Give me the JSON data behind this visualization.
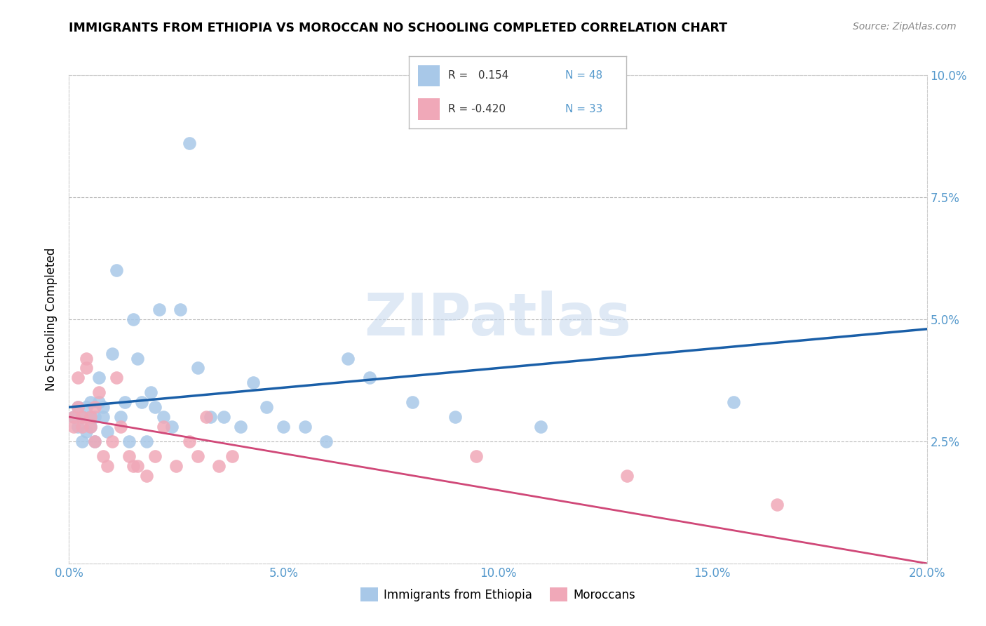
{
  "title": "IMMIGRANTS FROM ETHIOPIA VS MOROCCAN NO SCHOOLING COMPLETED CORRELATION CHART",
  "source": "Source: ZipAtlas.com",
  "ylabel": "No Schooling Completed",
  "xlim": [
    0.0,
    0.2
  ],
  "ylim": [
    0.0,
    0.1
  ],
  "x_tick_vals": [
    0.0,
    0.05,
    0.1,
    0.15,
    0.2
  ],
  "x_tick_labels": [
    "0.0%",
    "5.0%",
    "10.0%",
    "15.0%",
    "20.0%"
  ],
  "y_tick_vals": [
    0.025,
    0.05,
    0.075,
    0.1
  ],
  "y_tick_labels": [
    "2.5%",
    "5.0%",
    "7.5%",
    "10.0%"
  ],
  "legend_labels": [
    "Immigrants from Ethiopia",
    "Moroccans"
  ],
  "legend_R_ethiopia": "R =   0.154",
  "legend_N_ethiopia": "N = 48",
  "legend_R_morocco": "R = -0.420",
  "legend_N_morocco": "N = 33",
  "blue_color": "#a8c8e8",
  "pink_color": "#f0a8b8",
  "blue_line_color": "#1a5fa8",
  "pink_line_color": "#d04878",
  "tick_color": "#5599cc",
  "watermark": "ZIPatlas",
  "ethiopia_x": [
    0.001,
    0.002,
    0.002,
    0.003,
    0.003,
    0.004,
    0.004,
    0.005,
    0.005,
    0.005,
    0.006,
    0.006,
    0.007,
    0.007,
    0.008,
    0.008,
    0.009,
    0.01,
    0.011,
    0.012,
    0.013,
    0.014,
    0.015,
    0.016,
    0.017,
    0.018,
    0.019,
    0.02,
    0.021,
    0.022,
    0.024,
    0.026,
    0.028,
    0.03,
    0.033,
    0.036,
    0.04,
    0.043,
    0.046,
    0.05,
    0.055,
    0.06,
    0.065,
    0.07,
    0.08,
    0.09,
    0.11,
    0.155
  ],
  "ethiopia_y": [
    0.03,
    0.028,
    0.032,
    0.025,
    0.03,
    0.027,
    0.032,
    0.028,
    0.03,
    0.033,
    0.025,
    0.03,
    0.033,
    0.038,
    0.032,
    0.03,
    0.027,
    0.043,
    0.06,
    0.03,
    0.033,
    0.025,
    0.05,
    0.042,
    0.033,
    0.025,
    0.035,
    0.032,
    0.052,
    0.03,
    0.028,
    0.052,
    0.086,
    0.04,
    0.03,
    0.03,
    0.028,
    0.037,
    0.032,
    0.028,
    0.028,
    0.025,
    0.042,
    0.038,
    0.033,
    0.03,
    0.028,
    0.033
  ],
  "morocco_x": [
    0.001,
    0.001,
    0.002,
    0.002,
    0.003,
    0.003,
    0.004,
    0.004,
    0.005,
    0.005,
    0.006,
    0.006,
    0.007,
    0.008,
    0.009,
    0.01,
    0.011,
    0.012,
    0.014,
    0.015,
    0.016,
    0.018,
    0.02,
    0.022,
    0.025,
    0.028,
    0.03,
    0.032,
    0.035,
    0.038,
    0.095,
    0.13,
    0.165
  ],
  "morocco_y": [
    0.03,
    0.028,
    0.032,
    0.038,
    0.028,
    0.03,
    0.04,
    0.042,
    0.03,
    0.028,
    0.025,
    0.032,
    0.035,
    0.022,
    0.02,
    0.025,
    0.038,
    0.028,
    0.022,
    0.02,
    0.02,
    0.018,
    0.022,
    0.028,
    0.02,
    0.025,
    0.022,
    0.03,
    0.02,
    0.022,
    0.022,
    0.018,
    0.012
  ],
  "eth_line_x0": 0.0,
  "eth_line_x1": 0.2,
  "eth_line_y0": 0.032,
  "eth_line_y1": 0.048,
  "mor_line_x0": 0.0,
  "mor_line_x1": 0.2,
  "mor_line_y0": 0.03,
  "mor_line_y1": 0.0
}
